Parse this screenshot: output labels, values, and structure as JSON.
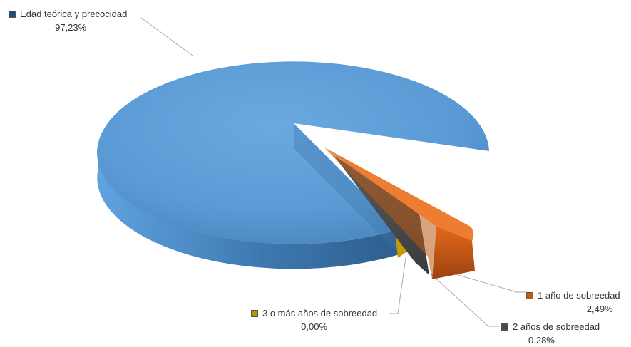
{
  "chart_data": {
    "type": "pie",
    "title": "",
    "categories": [
      "Edad teórica y precocidad",
      "1 año de sobreedad",
      "2 años de sobreedad",
      "3 o más años de sobreedad"
    ],
    "values": [
      97.23,
      2.49,
      0.28,
      0.0
    ],
    "value_labels": [
      "97,23%",
      "2,49%",
      "0.28%",
      "0,00%"
    ],
    "colors": [
      "#5b9bd5",
      "#ed7d31",
      "#6d6d6d",
      "#c9a400"
    ],
    "style": "3d-exploded",
    "legend": "none"
  }
}
